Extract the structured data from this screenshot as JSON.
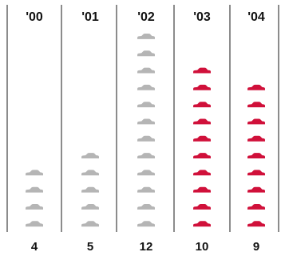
{
  "chart_data": {
    "type": "pictograph",
    "categories": [
      "'00",
      "'01",
      "'02",
      "'03",
      "'04"
    ],
    "values": [
      4,
      5,
      12,
      10,
      9
    ],
    "series": [
      {
        "values": [
          4,
          5,
          12,
          0,
          0
        ],
        "color": "#b5b5b5"
      },
      {
        "values": [
          0,
          0,
          0,
          10,
          9
        ],
        "color": "#d0103a"
      }
    ],
    "icon": "car-icon",
    "year_labels": [
      "'00",
      "'01",
      "'02",
      "'03",
      "'04"
    ],
    "count_labels": [
      "4",
      "5",
      "12",
      "10",
      "9"
    ],
    "grid": false
  },
  "colors": {
    "gray_car": "#b5b5b5",
    "red_car": "#d0103a",
    "divider": "#1a1a1a",
    "text": "#111111"
  }
}
